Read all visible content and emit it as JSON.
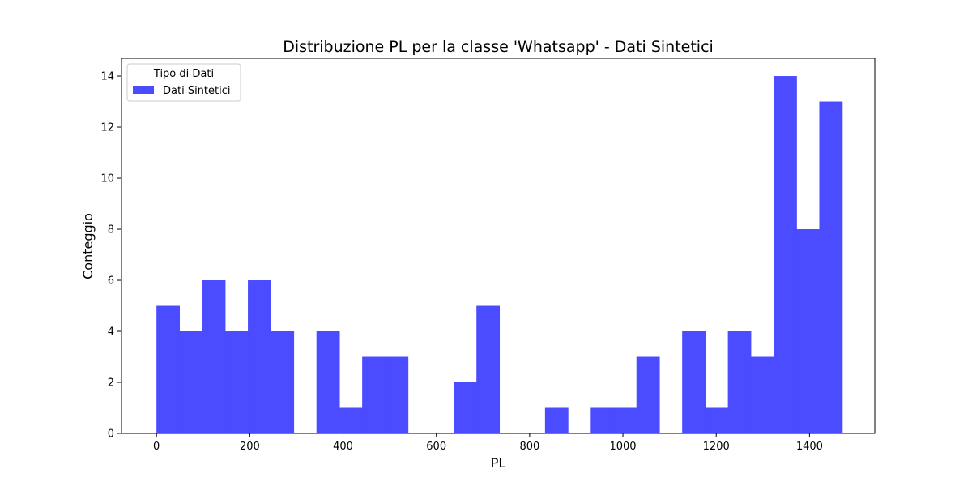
{
  "chart_data": {
    "type": "bar",
    "title": "Distribuzione PL per la classe 'Whatsapp' - Dati Sintetici",
    "xlabel": "PL",
    "ylabel": "Conteggio",
    "xlim": [
      -75,
      1540
    ],
    "ylim": [
      0,
      14.7
    ],
    "x_ticks": [
      0,
      200,
      400,
      600,
      800,
      1000,
      1200,
      1400
    ],
    "y_ticks": [
      0,
      2,
      4,
      6,
      8,
      10,
      12,
      14
    ],
    "bin_start": 0,
    "bin_width": 49,
    "series": [
      {
        "name": "Dati Sintetici",
        "color": "#4b4bff",
        "values": [
          5,
          4,
          6,
          4,
          6,
          4,
          0,
          4,
          1,
          3,
          3,
          0,
          0,
          2,
          5,
          0,
          0,
          1,
          0,
          1,
          1,
          3,
          0,
          4,
          1,
          4,
          3,
          14,
          8,
          13
        ]
      }
    ],
    "legend": {
      "title": "Tipo di Dati",
      "placement": "top-left"
    },
    "grid": false
  }
}
